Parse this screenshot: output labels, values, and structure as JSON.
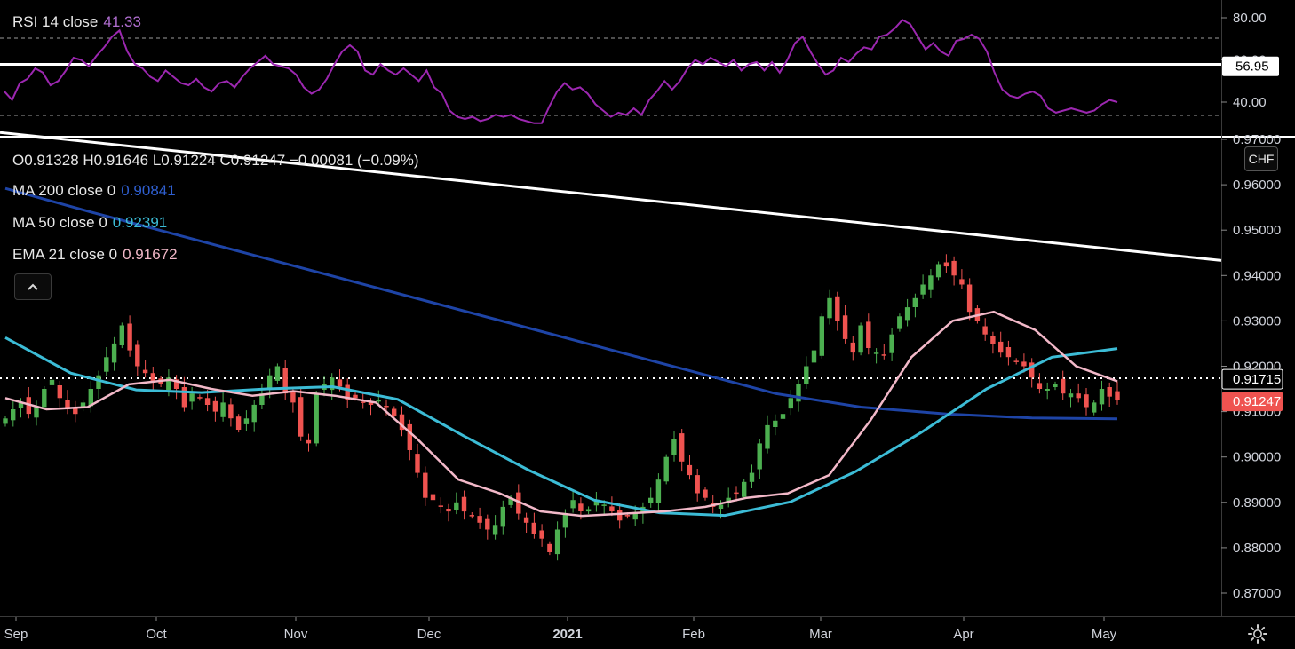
{
  "rsi_legend": {
    "label": "RSI 14 close",
    "value": "41.33"
  },
  "ohlc_legend": {
    "text": "O0.91328  H0.91646  L0.91224  C0.91247  −0.00081  (−0.09%)"
  },
  "ma200_legend": {
    "label": "MA 200 close 0",
    "value": "0.90841"
  },
  "ma50_legend": {
    "label": "MA 50 close 0",
    "value": "0.92391"
  },
  "ema21_legend": {
    "label": "EMA 21 close 0",
    "value": "0.91672"
  },
  "collapse_button": {
    "icon": "chevron-up-icon",
    "label": "^"
  },
  "currency_badge": "CHF",
  "settings_icon": "gear-icon",
  "colors": {
    "background": "#000000",
    "rsi": "#9c27b0",
    "ma200": "#1e44a6",
    "ma50": "#3cbcd6",
    "ema21": "#f2b8c8",
    "up": "#4caf50",
    "down": "#ef5350",
    "trendline": "#ffffff"
  },
  "chart_data": [
    {
      "type": "line",
      "title": "RSI 14 close",
      "yticks": [
        "80.00",
        "60.00",
        "40.00"
      ],
      "ylim": [
        27,
        83
      ],
      "bands": [
        70,
        30
      ],
      "horizontal_line": {
        "value": 56.95,
        "label": "56.95"
      },
      "series": [
        {
          "name": "RSI 14 close",
          "values": [
            45,
            41,
            49,
            51,
            56,
            54,
            48,
            50,
            55,
            61,
            60,
            57,
            62,
            66,
            71,
            74,
            64,
            58,
            56,
            52,
            50,
            55,
            52,
            49,
            48,
            51,
            47,
            45,
            49,
            50,
            47,
            52,
            56,
            59,
            62,
            58,
            57,
            56,
            53,
            47,
            44,
            46,
            51,
            58,
            64,
            67,
            64,
            55,
            53,
            58,
            55,
            53,
            56,
            53,
            50,
            55,
            47,
            44,
            36,
            33,
            32,
            33,
            31,
            32,
            34,
            33,
            34,
            32,
            31,
            30,
            30,
            38,
            45,
            49,
            46,
            47,
            44,
            39,
            36,
            33,
            35,
            34,
            37,
            34,
            41,
            45,
            50,
            46,
            50,
            56,
            60,
            58,
            61,
            59,
            57,
            60,
            55,
            58,
            59,
            55,
            59,
            54,
            60,
            68,
            71,
            64,
            58,
            53,
            55,
            61,
            59,
            63,
            66,
            65,
            71,
            72,
            75,
            79,
            77,
            71,
            65,
            68,
            64,
            62,
            69,
            70,
            72,
            70,
            64,
            54,
            46,
            43,
            42,
            44,
            45,
            43,
            37,
            35,
            36,
            37,
            36,
            35,
            36,
            39,
            41,
            40
          ]
        }
      ]
    },
    {
      "type": "line",
      "title": "USDCHF daily candles",
      "xlabels": [
        "Sep",
        "Oct",
        "Nov",
        "Dec",
        "2021",
        "Feb",
        "Mar",
        "Apr",
        "May"
      ],
      "yticks": [
        "0.97000",
        "0.96000",
        "0.95000",
        "0.94000",
        "0.93000",
        "0.92000",
        "0.91000",
        "0.90000",
        "0.89000",
        "0.88000",
        "0.87000"
      ],
      "ylim": [
        0.8665,
        0.97
      ],
      "price_labels": [
        {
          "value": 0.91715,
          "label": "0.91715"
        },
        {
          "value": 0.91247,
          "label": "0.91247"
        }
      ],
      "trendline": {
        "from": 0.9715,
        "to": 0.9433
      },
      "closes": [
        0.9085,
        0.9105,
        0.912,
        0.9095,
        0.911,
        0.915,
        0.917,
        0.913,
        0.9105,
        0.9095,
        0.912,
        0.915,
        0.918,
        0.922,
        0.925,
        0.929,
        0.9235,
        0.92,
        0.9185,
        0.9165,
        0.916,
        0.9175,
        0.915,
        0.911,
        0.914,
        0.913,
        0.9115,
        0.91,
        0.912,
        0.9085,
        0.906,
        0.9085,
        0.9115,
        0.914,
        0.918,
        0.92,
        0.914,
        0.912,
        0.9045,
        0.903,
        0.914,
        0.916,
        0.9175,
        0.9155,
        0.9125,
        0.913,
        0.912,
        0.9115,
        0.9125,
        0.911,
        0.909,
        0.906,
        0.9015,
        0.8965,
        0.891,
        0.8905,
        0.889,
        0.888,
        0.89,
        0.888,
        0.887,
        0.8855,
        0.884,
        0.885,
        0.889,
        0.891,
        0.8875,
        0.8855,
        0.883,
        0.882,
        0.879,
        0.884,
        0.8875,
        0.8905,
        0.888,
        0.8885,
        0.8905,
        0.8895,
        0.888,
        0.886,
        0.887,
        0.8875,
        0.889,
        0.891,
        0.895,
        0.9,
        0.904,
        0.899,
        0.896,
        0.892,
        0.891,
        0.889,
        0.8895,
        0.891,
        0.892,
        0.8945,
        0.8965,
        0.903,
        0.907,
        0.908,
        0.9095,
        0.913,
        0.916,
        0.92,
        0.9235,
        0.931,
        0.935,
        0.93,
        0.926,
        0.923,
        0.929,
        0.924,
        0.923,
        0.9225,
        0.927,
        0.931,
        0.933,
        0.935,
        0.938,
        0.94,
        0.9425,
        0.942,
        0.94,
        0.938,
        0.932,
        0.93,
        0.927,
        0.925,
        0.923,
        0.922,
        0.921,
        0.92,
        0.9175,
        0.915,
        0.915,
        0.916,
        0.914,
        0.914,
        0.913,
        0.911,
        0.912,
        0.915,
        0.9133,
        0.9125
      ],
      "series": [
        {
          "name": "MA 200 close 0",
          "values": [
            0.9592,
            0.954,
            0.949,
            0.944,
            0.939,
            0.934,
            0.929,
            0.924,
            0.919,
            0.914,
            0.911,
            0.9095,
            0.9086,
            0.9084
          ]
        },
        {
          "name": "MA 50 close 0",
          "values": [
            0.9263,
            0.9185,
            0.9148,
            0.9142,
            0.915,
            0.9155,
            0.9127,
            0.9047,
            0.8971,
            0.8905,
            0.8877,
            0.8871,
            0.8901,
            0.8968,
            0.9054,
            0.915,
            0.922,
            0.9239
          ]
        },
        {
          "name": "EMA 21 close 0",
          "values": [
            0.913,
            0.9105,
            0.911,
            0.916,
            0.917,
            0.915,
            0.9135,
            0.9145,
            0.9135,
            0.912,
            0.904,
            0.895,
            0.892,
            0.888,
            0.887,
            0.8875,
            0.888,
            0.889,
            0.891,
            0.892,
            0.896,
            0.908,
            0.922,
            0.93,
            0.932,
            0.928,
            0.92,
            0.9167
          ]
        }
      ]
    }
  ]
}
